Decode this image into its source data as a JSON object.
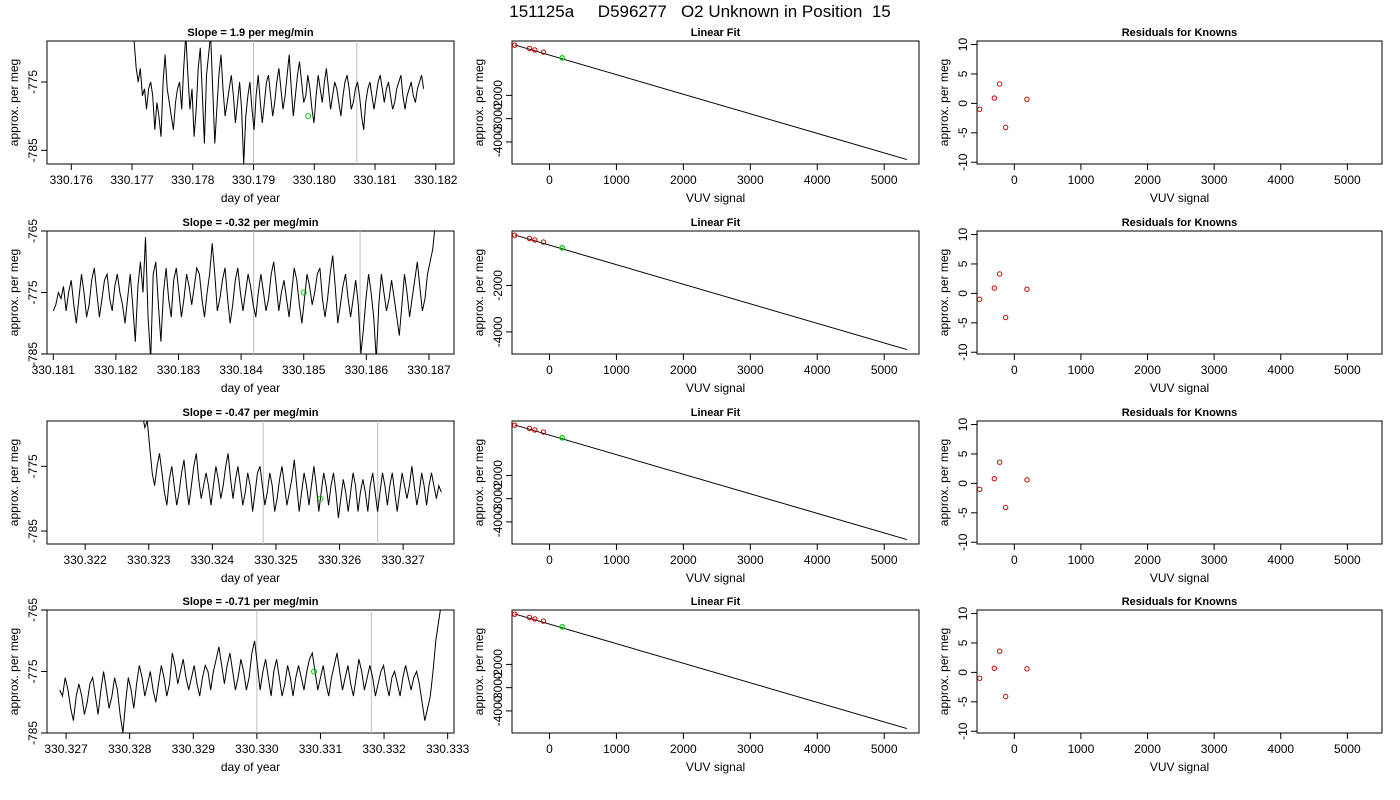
{
  "main_title": "151125a     D596277   O2 Unknown in Position  15",
  "chart_data": [
    {
      "type": "line",
      "panel": "time-series-row-1",
      "title": "Slope =  1.9  per meg/min",
      "xlabel": "day of year",
      "ylabel": "approx. per meg",
      "xlim": [
        330.1756,
        330.1823
      ],
      "ylim": [
        -787,
        -769
      ],
      "xticks": [
        "330.176",
        "330.177",
        "330.178",
        "330.179",
        "330.180",
        "330.181",
        "330.182"
      ],
      "yticks": [
        "-775",
        "-785"
      ],
      "x_start": 330.177,
      "x_end": 330.1818,
      "y_values": [
        -768,
        -769,
        -773,
        -775,
        -773,
        -777,
        -776,
        -779,
        -776,
        -775,
        -777,
        -782,
        -778,
        -780,
        -783,
        -775,
        -771,
        -776,
        -778,
        -780,
        -782,
        -778,
        -776,
        -775,
        -779,
        -773,
        -768,
        -774,
        -779,
        -776,
        -783,
        -779,
        -773,
        -770,
        -777,
        -784,
        -774,
        -771,
        -768,
        -776,
        -784,
        -779,
        -774,
        -771,
        -776,
        -780,
        -778,
        -776,
        -774,
        -777,
        -781,
        -778,
        -775,
        -779,
        -787,
        -780,
        -777,
        -775,
        -779,
        -782,
        -777,
        -774,
        -778,
        -781,
        -778,
        -775,
        -774,
        -777,
        -780,
        -778,
        -775,
        -773,
        -776,
        -779,
        -777,
        -774,
        -771,
        -776,
        -780,
        -777,
        -774,
        -772,
        -775,
        -778,
        -777,
        -774,
        -776,
        -779,
        -781,
        -777,
        -774,
        -776,
        -778,
        -775,
        -773,
        -776,
        -779,
        -777,
        -775,
        -776,
        -778,
        -780,
        -777,
        -775,
        -774,
        -776,
        -779,
        -778,
        -776,
        -775,
        -777,
        -780,
        -782,
        -778,
        -776,
        -775,
        -777,
        -779,
        -777,
        -775,
        -774,
        -776,
        -778,
        -776,
        -775,
        -777,
        -779,
        -778,
        -776,
        -775,
        -774,
        -777,
        -779,
        -777,
        -776,
        -775,
        -777,
        -778,
        -776,
        -775,
        -774,
        -776
      ],
      "vlines": [
        330.179,
        330.1807
      ],
      "green_point": [
        330.1799,
        -780
      ]
    },
    {
      "type": "scatter",
      "panel": "linear-fit-row-1",
      "title": "Linear Fit",
      "xlabel": "VUV signal",
      "ylabel": "approx. per meg",
      "xlim": [
        -560,
        5520
      ],
      "ylim": [
        -4950,
        340
      ],
      "xticks": [
        0,
        1000,
        2000,
        3000,
        4000,
        5000
      ],
      "yticks": [
        -2000,
        -3000,
        -4000
      ],
      "known_points": [
        [
          -520,
          160
        ],
        [
          -300,
          20
        ],
        [
          -220,
          -45
        ],
        [
          -90,
          -135
        ]
      ],
      "unknown_point": [
        190,
        -385
      ],
      "fit_line": [
        [
          -520,
          170
        ],
        [
          5340,
          -4760
        ]
      ]
    },
    {
      "type": "scatter",
      "panel": "residuals-row-1",
      "title": "Residuals for Knowns",
      "xlabel": "VUV signal",
      "ylabel": "approx. per meg",
      "xlim": [
        -560,
        5520
      ],
      "ylim": [
        -10.3,
        10.6
      ],
      "xticks": [
        0,
        1000,
        2000,
        3000,
        4000,
        5000
      ],
      "yticks": [
        10,
        5,
        0,
        -5,
        -10
      ],
      "points": [
        [
          -520,
          -1.0
        ],
        [
          -300,
          0.9
        ],
        [
          -220,
          3.3
        ],
        [
          -130,
          -4.1
        ],
        [
          190,
          0.7
        ]
      ]
    },
    {
      "type": "line",
      "panel": "time-series-row-2",
      "title": "Slope =  -0.32  per meg/min",
      "xlabel": "day of year",
      "ylabel": "approx. per meg",
      "xlim": [
        330.1809,
        330.1874
      ],
      "ylim": [
        -785,
        -765
      ],
      "xticks": [
        "330.181",
        "330.182",
        "330.183",
        "330.184",
        "330.185",
        "330.186",
        "330.187"
      ],
      "yticks": [
        "-765",
        "-775",
        "-785"
      ],
      "x_start": 330.181,
      "x_end": 330.1871,
      "y_values": [
        -778,
        -777,
        -775,
        -776,
        -774,
        -778,
        -775,
        -773,
        -777,
        -780,
        -776,
        -772,
        -775,
        -779,
        -777,
        -773,
        -771,
        -775,
        -779,
        -776,
        -773,
        -772,
        -776,
        -778,
        -774,
        -772,
        -775,
        -777,
        -780,
        -776,
        -772,
        -777,
        -783,
        -774,
        -770,
        -775,
        -766,
        -779,
        -786,
        -772,
        -770,
        -777,
        -783,
        -775,
        -771,
        -776,
        -779,
        -773,
        -771,
        -775,
        -779,
        -776,
        -772,
        -774,
        -777,
        -774,
        -771,
        -772,
        -776,
        -779,
        -775,
        -772,
        -767,
        -772,
        -778,
        -776,
        -773,
        -771,
        -776,
        -780,
        -777,
        -773,
        -771,
        -775,
        -778,
        -775,
        -772,
        -774,
        -777,
        -779,
        -775,
        -772,
        -775,
        -778,
        -776,
        -772,
        -770,
        -774,
        -778,
        -775,
        -773,
        -776,
        -779,
        -775,
        -771,
        -773,
        -777,
        -780,
        -776,
        -772,
        -774,
        -777,
        -775,
        -772,
        -771,
        -776,
        -779,
        -776,
        -772,
        -769,
        -774,
        -780,
        -777,
        -774,
        -772,
        -776,
        -779,
        -776,
        -773,
        -777,
        -785,
        -781,
        -776,
        -772,
        -775,
        -779,
        -786,
        -777,
        -772,
        -775,
        -778,
        -776,
        -773,
        -776,
        -779,
        -782,
        -777,
        -772,
        -775,
        -779,
        -776,
        -773,
        -770,
        -774,
        -778,
        -776,
        -772,
        -770,
        -768,
        -764
      ],
      "vlines": [
        330.1842,
        330.1859
      ],
      "green_point": [
        330.185,
        -775
      ]
    },
    {
      "type": "scatter",
      "panel": "linear-fit-row-2",
      "title": "Linear Fit",
      "xlabel": "VUV signal",
      "ylabel": "approx. per meg",
      "xlim": [
        -560,
        5520
      ],
      "ylim": [
        -4950,
        340
      ],
      "xticks": [
        0,
        1000,
        2000,
        3000,
        4000,
        5000
      ],
      "yticks": [
        -2000,
        -4000
      ],
      "known_points": [
        [
          -520,
          160
        ],
        [
          -300,
          20
        ],
        [
          -220,
          -45
        ],
        [
          -90,
          -135
        ]
      ],
      "unknown_point": [
        190,
        -385
      ],
      "fit_line": [
        [
          -520,
          170
        ],
        [
          5340,
          -4760
        ]
      ]
    },
    {
      "type": "scatter",
      "panel": "residuals-row-2",
      "title": "Residuals for Knowns",
      "xlabel": "VUV signal",
      "ylabel": "approx. per meg",
      "xlim": [
        -560,
        5520
      ],
      "ylim": [
        -10.3,
        10.6
      ],
      "xticks": [
        0,
        1000,
        2000,
        3000,
        4000,
        5000
      ],
      "yticks": [
        10,
        5,
        0,
        -5,
        -10
      ],
      "points": [
        [
          -520,
          -1.0
        ],
        [
          -300,
          0.9
        ],
        [
          -220,
          3.3
        ],
        [
          -130,
          -4.1
        ],
        [
          190,
          0.7
        ]
      ]
    },
    {
      "type": "line",
      "panel": "time-series-row-3",
      "title": "Slope =  -0.47  per meg/min",
      "xlabel": "day of year",
      "ylabel": "approx. per meg",
      "xlim": [
        330.3214,
        330.3278
      ],
      "ylim": [
        -787,
        -768
      ],
      "xticks": [
        "330.322",
        "330.323",
        "330.324",
        "330.325",
        "330.326",
        "330.327"
      ],
      "yticks": [
        "-775",
        "-785"
      ],
      "x_start": 330.3229,
      "x_end": 330.3276,
      "y_values": [
        -767,
        -769,
        -768,
        -772,
        -776,
        -778,
        -775,
        -773,
        -776,
        -779,
        -781,
        -777,
        -775,
        -778,
        -781,
        -779,
        -776,
        -774,
        -778,
        -781,
        -778,
        -775,
        -773,
        -777,
        -780,
        -778,
        -776,
        -778,
        -781,
        -778,
        -775,
        -777,
        -780,
        -778,
        -775,
        -773,
        -777,
        -780,
        -777,
        -775,
        -778,
        -781,
        -779,
        -776,
        -778,
        -782,
        -779,
        -776,
        -775,
        -778,
        -781,
        -779,
        -776,
        -778,
        -782,
        -780,
        -777,
        -775,
        -778,
        -781,
        -779,
        -777,
        -774,
        -778,
        -782,
        -779,
        -776,
        -778,
        -781,
        -778,
        -775,
        -778,
        -782,
        -779,
        -776,
        -778,
        -781,
        -778,
        -776,
        -779,
        -783,
        -780,
        -777,
        -779,
        -782,
        -779,
        -776,
        -778,
        -782,
        -779,
        -777,
        -779,
        -782,
        -778,
        -776,
        -779,
        -782,
        -779,
        -776,
        -778,
        -781,
        -778,
        -776,
        -779,
        -782,
        -779,
        -776,
        -778,
        -780,
        -778,
        -775,
        -778,
        -781,
        -779,
        -776,
        -778,
        -781,
        -778,
        -776,
        -778,
        -780,
        -778,
        -779
      ],
      "vlines": [
        330.3248,
        330.3266
      ],
      "green_point": [
        330.3257,
        -780
      ]
    },
    {
      "type": "scatter",
      "panel": "linear-fit-row-3",
      "title": "Linear Fit",
      "xlabel": "VUV signal",
      "ylabel": "approx. per meg",
      "xlim": [
        -560,
        5520
      ],
      "ylim": [
        -4950,
        340
      ],
      "xticks": [
        0,
        1000,
        2000,
        3000,
        4000,
        5000
      ],
      "yticks": [
        -2000,
        -3000,
        -4000
      ],
      "known_points": [
        [
          -520,
          160
        ],
        [
          -300,
          20
        ],
        [
          -220,
          -45
        ],
        [
          -90,
          -135
        ]
      ],
      "unknown_point": [
        190,
        -385
      ],
      "fit_line": [
        [
          -520,
          170
        ],
        [
          5340,
          -4760
        ]
      ]
    },
    {
      "type": "scatter",
      "panel": "residuals-row-3",
      "title": "Residuals for Knowns",
      "xlabel": "VUV signal",
      "ylabel": "approx. per meg",
      "xlim": [
        -560,
        5520
      ],
      "ylim": [
        -10.3,
        10.6
      ],
      "xticks": [
        0,
        1000,
        2000,
        3000,
        4000,
        5000
      ],
      "yticks": [
        10,
        5,
        0,
        -5,
        -10
      ],
      "points": [
        [
          -520,
          -1.0
        ],
        [
          -300,
          0.8
        ],
        [
          -220,
          3.6
        ],
        [
          -130,
          -4.1
        ],
        [
          190,
          0.6
        ]
      ]
    },
    {
      "type": "line",
      "panel": "time-series-row-4",
      "title": "Slope =  -0.71  per meg/min",
      "xlabel": "day of year",
      "ylabel": "approx. per meg",
      "xlim": [
        330.3267,
        330.3331
      ],
      "ylim": [
        -785,
        -765
      ],
      "xticks": [
        "330.327",
        "330.328",
        "330.329",
        "330.330",
        "330.331",
        "330.332",
        "330.333"
      ],
      "yticks": [
        "-765",
        "-775",
        "-785"
      ],
      "x_start": 330.3269,
      "x_end": 330.3329,
      "y_values": [
        -778,
        -779,
        -776,
        -778,
        -781,
        -783,
        -779,
        -777,
        -779,
        -782,
        -780,
        -777,
        -776,
        -779,
        -782,
        -778,
        -775,
        -778,
        -781,
        -779,
        -776,
        -778,
        -782,
        -785,
        -780,
        -776,
        -778,
        -781,
        -777,
        -774,
        -776,
        -779,
        -777,
        -775,
        -778,
        -780,
        -777,
        -774,
        -776,
        -779,
        -777,
        -772,
        -774,
        -777,
        -775,
        -773,
        -776,
        -778,
        -776,
        -774,
        -777,
        -779,
        -776,
        -774,
        -775,
        -778,
        -775,
        -773,
        -771,
        -774,
        -777,
        -774,
        -772,
        -775,
        -778,
        -776,
        -773,
        -775,
        -778,
        -776,
        -772,
        -770,
        -774,
        -778,
        -775,
        -773,
        -776,
        -779,
        -775,
        -773,
        -776,
        -779,
        -777,
        -774,
        -776,
        -779,
        -776,
        -774,
        -776,
        -778,
        -775,
        -773,
        -772,
        -775,
        -778,
        -776,
        -774,
        -777,
        -779,
        -776,
        -774,
        -772,
        -775,
        -778,
        -776,
        -774,
        -777,
        -779,
        -776,
        -773,
        -775,
        -778,
        -776,
        -774,
        -776,
        -779,
        -777,
        -775,
        -774,
        -777,
        -779,
        -776,
        -775,
        -777,
        -779,
        -776,
        -774,
        -776,
        -778,
        -776,
        -775,
        -777,
        -780,
        -783,
        -781,
        -779,
        -775,
        -770,
        -767,
        -764
      ],
      "vlines": [
        330.33,
        330.3318
      ],
      "green_point": [
        330.3309,
        -775
      ]
    },
    {
      "type": "scatter",
      "panel": "linear-fit-row-4",
      "title": "Linear Fit",
      "xlabel": "VUV signal",
      "ylabel": "approx. per meg",
      "xlim": [
        -560,
        5520
      ],
      "ylim": [
        -4950,
        340
      ],
      "xticks": [
        0,
        1000,
        2000,
        3000,
        4000,
        5000
      ],
      "yticks": [
        -2000,
        -3000,
        -4000
      ],
      "known_points": [
        [
          -520,
          160
        ],
        [
          -300,
          20
        ],
        [
          -220,
          -45
        ],
        [
          -90,
          -135
        ]
      ],
      "unknown_point": [
        190,
        -385
      ],
      "fit_line": [
        [
          -520,
          170
        ],
        [
          5340,
          -4760
        ]
      ]
    },
    {
      "type": "scatter",
      "panel": "residuals-row-4",
      "title": "Residuals for Knowns",
      "xlabel": "VUV signal",
      "ylabel": "approx. per meg",
      "xlim": [
        -560,
        5520
      ],
      "ylim": [
        -10.3,
        10.6
      ],
      "xticks": [
        0,
        1000,
        2000,
        3000,
        4000,
        5000
      ],
      "yticks": [
        10,
        5,
        0,
        -5,
        -10
      ],
      "points": [
        [
          -520,
          -1.0
        ],
        [
          -300,
          0.7
        ],
        [
          -220,
          3.6
        ],
        [
          -130,
          -4.1
        ],
        [
          190,
          0.6
        ]
      ]
    }
  ],
  "colors": {
    "line": "#000000",
    "known_point": "#cc0000",
    "unknown_point": "#00cc00",
    "vline": "#bebebe",
    "axis": "#000000"
  }
}
